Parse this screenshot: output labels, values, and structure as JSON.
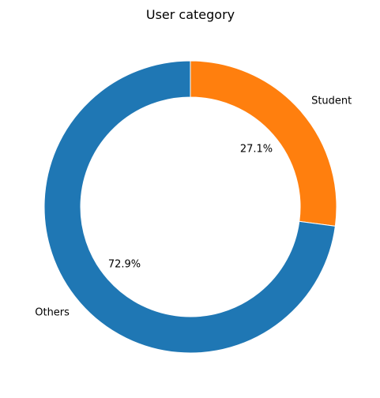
{
  "chart_data": {
    "type": "pie",
    "title": "User category",
    "categories": [
      "Student",
      "Others"
    ],
    "values": [
      27.1,
      72.9
    ],
    "value_labels": [
      "27.1%",
      "72.9%"
    ],
    "colors": [
      "#ff7f0e",
      "#1f77b4"
    ],
    "donut": true,
    "start": "top",
    "direction": "clockwise",
    "legend": "none"
  }
}
